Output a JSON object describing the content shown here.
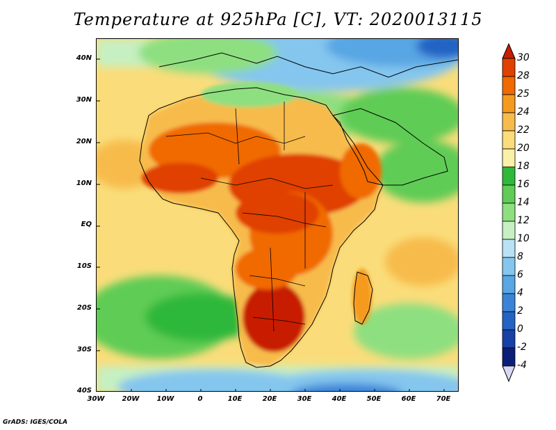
{
  "title": "Temperature at 925hPa [C], VT: 2020013115",
  "footer": "GrADS: IGES/COLA",
  "lat_labels": [
    "40N",
    "30N",
    "20N",
    "10N",
    "EQ",
    "10S",
    "20S",
    "30S",
    "40S"
  ],
  "lon_labels": [
    "30W",
    "20W",
    "10W",
    "0",
    "10E",
    "20E",
    "30E",
    "40E",
    "50E",
    "60E",
    "70E"
  ],
  "colorbar": {
    "labels": [
      "30",
      "28",
      "25",
      "24",
      "22",
      "20",
      "18",
      "16",
      "14",
      "12",
      "10",
      "8",
      "6",
      "4",
      "2",
      "0",
      "-2",
      "-4"
    ],
    "colors": [
      "#c81e00",
      "#e04000",
      "#f06a00",
      "#f59a1e",
      "#f7bb4b",
      "#fadd7a",
      "#faf0a8",
      "#2fb83a",
      "#5fcc55",
      "#8edf80",
      "#c6f0c2",
      "#b9e2f4",
      "#84c6ee",
      "#58a6e4",
      "#3a84d8",
      "#2363c4",
      "#1641a6",
      "#0c1f78",
      "#d8d8f4"
    ]
  },
  "map": {
    "bounds": {
      "lon": [
        -30,
        75
      ],
      "lat": [
        -40,
        45
      ]
    }
  }
}
